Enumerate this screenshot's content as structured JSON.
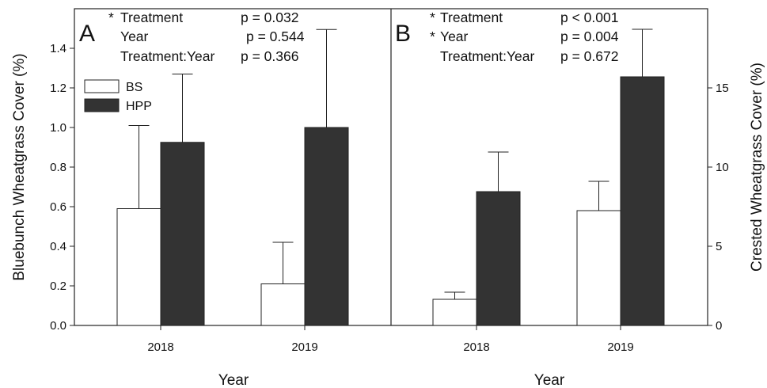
{
  "chart_data": [
    {
      "type": "bar",
      "panel_label": "A",
      "xlabel": "Year",
      "ylabel": "Bluebunch Wheatgrass Cover (%)",
      "categories": [
        "2018",
        "2019"
      ],
      "series": [
        {
          "name": "BS",
          "values": [
            0.59,
            0.21
          ],
          "errors": [
            0.42,
            0.21
          ]
        },
        {
          "name": "HPP",
          "values": [
            0.925,
            1.0
          ],
          "errors": [
            0.345,
            0.495
          ]
        }
      ],
      "ylim": [
        0,
        1.6
      ],
      "yticks": [
        0.0,
        0.2,
        0.4,
        0.6,
        0.8,
        1.0,
        1.2,
        1.4
      ],
      "ytick_labels": [
        "0.0",
        "0.2",
        "0.4",
        "0.6",
        "0.8",
        "1.0",
        "1.2",
        "1.4"
      ],
      "axis_side": "left",
      "legend_position": "top-left",
      "grid": false,
      "annotations": [
        {
          "star": "*",
          "term": "Treatment",
          "p": "p = 0.032"
        },
        {
          "star": "",
          "term": "Year",
          "p": "p = 0.544"
        },
        {
          "star": "",
          "term": "Treatment:Year",
          "p": "p = 0.366"
        }
      ]
    },
    {
      "type": "bar",
      "panel_label": "B",
      "xlabel": "Year",
      "ylabel": "Crested Wheatgrass Cover (%)",
      "categories": [
        "2018",
        "2019"
      ],
      "series": [
        {
          "name": "BS",
          "values": [
            1.65,
            7.25
          ],
          "errors": [
            0.45,
            1.85
          ]
        },
        {
          "name": "HPP",
          "values": [
            8.45,
            15.7
          ],
          "errors": [
            2.5,
            3.0
          ]
        }
      ],
      "ylim": [
        0,
        20
      ],
      "yticks": [
        0,
        5,
        10,
        15
      ],
      "ytick_labels": [
        "0",
        "5",
        "10",
        "15"
      ],
      "axis_side": "right",
      "grid": false,
      "annotations": [
        {
          "star": "*",
          "term": "Treatment",
          "p": "p < 0.001"
        },
        {
          "star": "*",
          "term": "Year",
          "p": "p = 0.004"
        },
        {
          "star": "",
          "term": "Treatment:Year",
          "p": "p = 0.672"
        }
      ]
    }
  ],
  "colors": {
    "BS": "#ffffff",
    "HPP": "#333333",
    "frame": "#222222"
  }
}
